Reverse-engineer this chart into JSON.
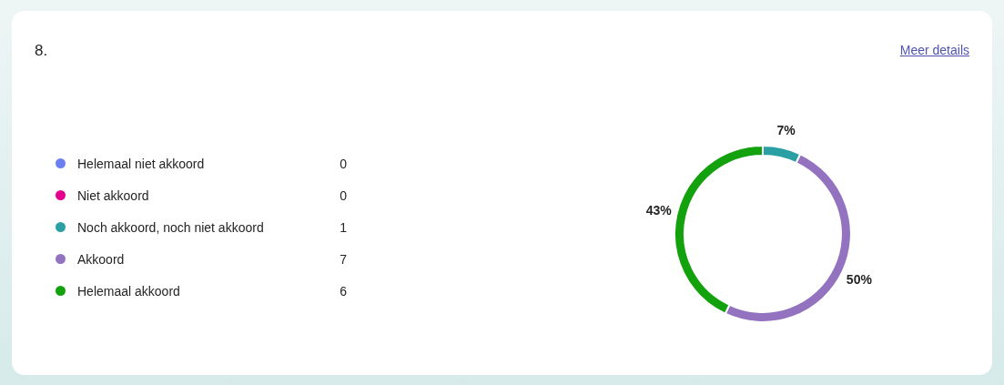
{
  "chart_data": {
    "type": "donut",
    "title": "8.",
    "categories": [
      "Helemaal niet akkoord",
      "Niet akkoord",
      "Noch akkoord, noch niet akkoord",
      "Akkoord",
      "Helemaal akkoord"
    ],
    "values": [
      0,
      0,
      7,
      50,
      43
    ],
    "value_labels": [
      null,
      null,
      "7%",
      "50%",
      "43%"
    ],
    "colors": [
      "#6b7ff0",
      "#e3008c",
      "#2aa0a4",
      "#9373c0",
      "#13a10e"
    ],
    "legend": "left",
    "annotations": [
      "Meer details",
      {
        "text": "0",
        "x": "Helemaal niet akkoord"
      },
      {
        "text": "0",
        "x": "Niet akkoord"
      },
      {
        "text": "1",
        "x": "Noch akkoord, noch niet akkoord"
      },
      {
        "text": "7",
        "x": "Akkoord"
      },
      {
        "text": "6",
        "x": "Helemaal akkoord"
      }
    ]
  }
}
